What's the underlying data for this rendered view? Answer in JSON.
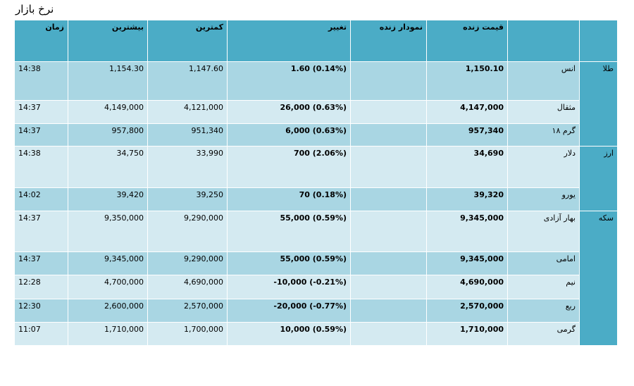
{
  "page_title": "نرخ بازار",
  "headers": {
    "time": "زمان",
    "high": "بیشترین",
    "low": "کمترین",
    "change": "تغییر",
    "chart": "نمودار زنده",
    "price": "قیمت زنده"
  },
  "groups": [
    {
      "name": "طلا",
      "rows": [
        {
          "label": "انس",
          "price": "1,150.10",
          "change": "1.60 (0.14%)",
          "low": "1,147.60",
          "high": "1,154.30",
          "time": "14:38"
        },
        {
          "label": "مثقال",
          "price": "4,147,000",
          "change": "26,000 (0.63%)",
          "low": "4,121,000",
          "high": "4,149,000",
          "time": "14:37"
        },
        {
          "label": "گرم ۱۸",
          "price": "957,340",
          "change": "6,000 (0.63%)",
          "low": "951,340",
          "high": "957,800",
          "time": "14:37"
        }
      ]
    },
    {
      "name": "ارز",
      "rows": [
        {
          "label": "دلار",
          "price": "34,690",
          "change": "700 (2.06%)",
          "low": "33,990",
          "high": "34,750",
          "time": "14:38"
        },
        {
          "label": "یورو",
          "price": "39,320",
          "change": "70 (0.18%)",
          "low": "39,250",
          "high": "39,420",
          "time": "14:02"
        }
      ]
    },
    {
      "name": "سکه",
      "rows": [
        {
          "label": "بهار آزادی",
          "price": "9,345,000",
          "change": "55,000 (0.59%)",
          "low": "9,290,000",
          "high": "9,350,000",
          "time": "14:37"
        },
        {
          "label": "امامی",
          "price": "9,345,000",
          "change": "55,000 (0.59%)",
          "low": "9,290,000",
          "high": "9,345,000",
          "time": "14:37"
        },
        {
          "label": "نیم",
          "price": "4,690,000",
          "change": "-10,000 (-0.21%)",
          "low": "4,690,000",
          "high": "4,700,000",
          "time": "12:28"
        },
        {
          "label": "ربع",
          "price": "2,570,000",
          "change": "-20,000 (-0.77%)",
          "low": "2,570,000",
          "high": "2,600,000",
          "time": "12:30"
        },
        {
          "label": "گرمی",
          "price": "1,710,000",
          "change": "10,000 (0.59%)",
          "low": "1,700,000",
          "high": "1,710,000",
          "time": "11:07"
        }
      ]
    }
  ]
}
